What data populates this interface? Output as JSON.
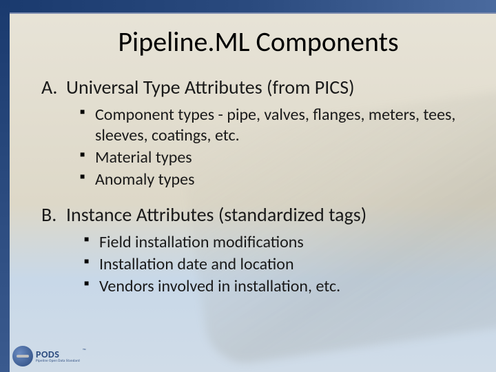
{
  "colors": {
    "header_bar_gradient": [
      "#1a3a6e",
      "#2a4a7e",
      "#4a6a9e"
    ],
    "side_strip_gradient": [
      "#1a3a6e",
      "#3a5a8e"
    ],
    "background_gradient": [
      "#e8e4d8",
      "#ddd8c8",
      "#c8d8e8",
      "#d0dce8"
    ],
    "text_color": "#1a1a1a",
    "bullet_color": "#000000",
    "logo_primary": "#2a4a7e"
  },
  "typography": {
    "title_fontsize": 40,
    "section_fontsize": 28,
    "bullet_fontsize": 24,
    "font_family": "Calibri"
  },
  "title": "Pipeline.ML Components",
  "sections": [
    {
      "letter": "A.",
      "heading": "Universal Type Attributes (from PICS)",
      "bullets": [
        "Component types - pipe, valves, flanges, meters, tees, sleeves, coatings, etc.",
        "Material types",
        "Anomaly types"
      ]
    },
    {
      "letter": "B.",
      "heading": "Instance Attributes (standardized tags)",
      "bullets": [
        "Field installation modifications",
        "Installation date and location",
        "Vendors involved in installation, etc."
      ]
    }
  ],
  "logo": {
    "main": "PODS",
    "sub": "Pipeline Open Data Standard",
    "tm": "™"
  }
}
